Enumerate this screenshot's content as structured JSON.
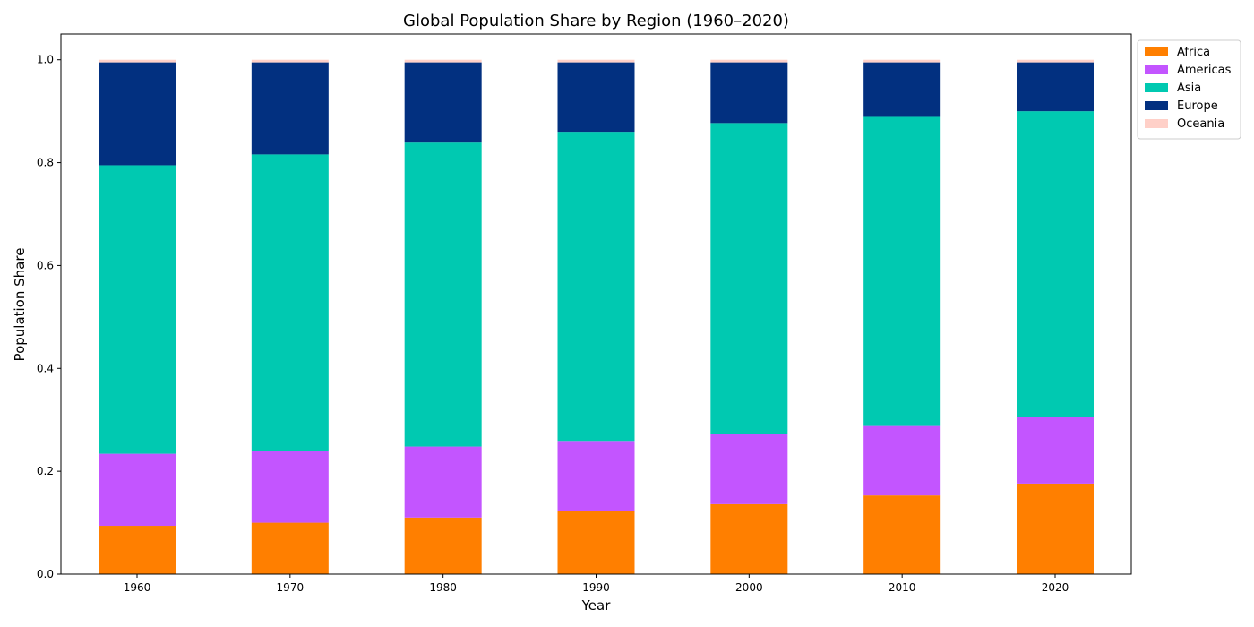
{
  "chart_data": {
    "type": "bar",
    "stacked": true,
    "title": "Global Population Share by Region (1960–2020)",
    "xlabel": "Year",
    "ylabel": "Population Share",
    "categories": [
      "1960",
      "1970",
      "1980",
      "1990",
      "2000",
      "2010",
      "2020"
    ],
    "ylim": [
      0,
      1.05
    ],
    "yticks": [
      0.0,
      0.2,
      0.4,
      0.6,
      0.8,
      1.0
    ],
    "ytick_labels": [
      "0.0",
      "0.2",
      "0.4",
      "0.6",
      "0.8",
      "1.0"
    ],
    "grid": false,
    "legend_position": "outside-top-right",
    "series": [
      {
        "name": "Africa",
        "color": "#ff7f00",
        "values": [
          0.094,
          0.1,
          0.11,
          0.122,
          0.136,
          0.153,
          0.176
        ]
      },
      {
        "name": "Americas",
        "color": "#c355ff",
        "values": [
          0.14,
          0.139,
          0.138,
          0.137,
          0.136,
          0.135,
          0.13
        ]
      },
      {
        "name": "Asia",
        "color": "#00c9b1",
        "values": [
          0.561,
          0.577,
          0.591,
          0.601,
          0.605,
          0.601,
          0.594
        ]
      },
      {
        "name": "Europe",
        "color": "#023080",
        "values": [
          0.2,
          0.179,
          0.156,
          0.135,
          0.118,
          0.106,
          0.095
        ]
      },
      {
        "name": "Oceania",
        "color": "#ffd0c8",
        "values": [
          0.005,
          0.005,
          0.005,
          0.005,
          0.005,
          0.005,
          0.005
        ]
      }
    ]
  }
}
